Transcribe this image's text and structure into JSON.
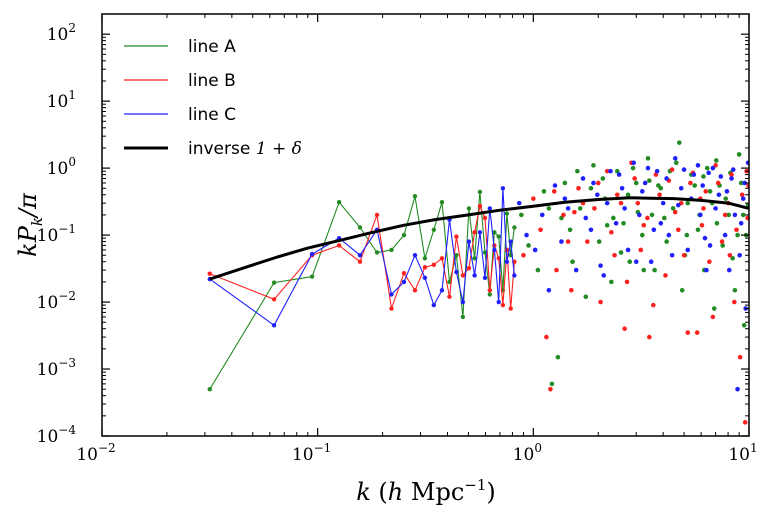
{
  "chart_data": {
    "type": "scatter",
    "xscale": "log",
    "yscale": "log",
    "xlim": [
      0.01,
      10
    ],
    "ylim": [
      0.0001,
      200
    ],
    "x_ticks": [
      0.01,
      0.1,
      1,
      10
    ],
    "x_tick_labels": [
      [
        "10",
        "−2"
      ],
      [
        "10",
        "−1"
      ],
      [
        "10",
        "0"
      ],
      [
        "10",
        "1"
      ]
    ],
    "y_ticks": [
      0.0001,
      0.001,
      0.01,
      0.1,
      1,
      10,
      100
    ],
    "y_tick_labels": [
      [
        "10",
        "−4"
      ],
      [
        "10",
        "−3"
      ],
      [
        "10",
        "−2"
      ],
      [
        "10",
        "−1"
      ],
      [
        "10",
        "0"
      ],
      [
        "10",
        "1"
      ],
      [
        "10",
        "2"
      ]
    ],
    "xlabel": {
      "k": "k",
      "open": " (",
      "h": "h",
      "unit": " Mpc",
      "sup": "−1",
      "close": ")"
    },
    "ylabel": {
      "main": "kP",
      "sub": "k",
      "tail": "/π"
    },
    "legend_placement": "top-left",
    "series": [
      {
        "name": "line A",
        "color": "#228B22",
        "connected_x": [
          0.0316,
          0.0628,
          0.0942,
          0.1257,
          0.1571,
          0.1885,
          0.2199,
          0.2513,
          0.2827,
          0.3142,
          0.3456,
          0.377,
          0.4084,
          0.4398,
          0.4712,
          0.5027,
          0.5341,
          0.5655,
          0.5969,
          0.6283,
          0.6597,
          0.6912,
          0.7226,
          0.754,
          0.7854,
          0.8168
        ],
        "connected_y": [
          0.0005,
          0.0195,
          0.024,
          0.31,
          0.13,
          0.055,
          0.06,
          0.1,
          0.38,
          0.045,
          0.12,
          0.31,
          0.02,
          0.05,
          0.006,
          0.25,
          0.045,
          0.44,
          0.055,
          0.013,
          0.11,
          0.095,
          0.015,
          0.21,
          0.05,
          0.13
        ],
        "scatter_points": [
          [
            0.88,
            0.2
          ],
          [
            0.95,
            0.07
          ],
          [
            1.05,
            0.03
          ],
          [
            1.12,
            0.45
          ],
          [
            1.22,
            0.0006
          ],
          [
            1.3,
            0.0015
          ],
          [
            1.4,
            0.6
          ],
          [
            1.52,
            0.04
          ],
          [
            1.65,
            0.25
          ],
          [
            1.75,
            0.012
          ],
          [
            1.9,
            1.1
          ],
          [
            2.02,
            0.08
          ],
          [
            2.15,
            0.35
          ],
          [
            2.3,
            0.02
          ],
          [
            2.45,
            0.9
          ],
          [
            2.62,
            0.15
          ],
          [
            2.8,
            0.04
          ],
          [
            3.0,
            0.6
          ],
          [
            3.2,
            0.1
          ],
          [
            3.4,
            1.4
          ],
          [
            3.65,
            0.03
          ],
          [
            3.9,
            0.5
          ],
          [
            4.15,
            0.08
          ],
          [
            4.45,
            0.25
          ],
          [
            4.75,
            2.4
          ],
          [
            5.05,
            0.05
          ],
          [
            5.4,
            0.8
          ],
          [
            5.8,
            0.12
          ],
          [
            6.2,
            0.03
          ],
          [
            6.6,
            0.45
          ],
          [
            7.05,
            1.3
          ],
          [
            7.55,
            0.07
          ],
          [
            8.05,
            0.2
          ],
          [
            8.6,
            0.015
          ],
          [
            9.2,
            0.6
          ],
          [
            9.7,
            0.1
          ],
          [
            1.18,
            0.25
          ],
          [
            1.48,
            0.12
          ],
          [
            1.85,
            0.5
          ],
          [
            2.35,
            0.18
          ],
          [
            2.9,
            1.0
          ],
          [
            3.55,
            0.2
          ],
          [
            4.3,
            0.9
          ],
          [
            5.2,
            0.3
          ],
          [
            6.4,
            1.0
          ],
          [
            7.8,
            0.35
          ],
          [
            9.0,
            1.6
          ],
          [
            2.55,
            0.055
          ],
          [
            3.25,
            0.03
          ],
          [
            4.9,
            0.015
          ],
          [
            6.9,
            0.008
          ],
          [
            8.4,
            0.045
          ],
          [
            9.5,
            0.0045
          ],
          [
            1.6,
            0.9
          ],
          [
            2.1,
            0.7
          ],
          [
            2.75,
            0.4
          ],
          [
            3.8,
            0.55
          ],
          [
            4.6,
            1.2
          ],
          [
            5.6,
            0.55
          ],
          [
            6.15,
            0.75
          ],
          [
            7.3,
            0.55
          ],
          [
            8.2,
            0.85
          ],
          [
            9.9,
            0.28
          ],
          [
            1.35,
            0.18
          ],
          [
            3.05,
            0.22
          ],
          [
            5.9,
            0.2
          ],
          [
            7.1,
            0.15
          ],
          [
            9.4,
            0.2
          ],
          [
            3.45,
            0.65
          ],
          [
            6.75,
            0.3
          ],
          [
            8.85,
            0.1
          ],
          [
            4.05,
            0.18
          ],
          [
            5.15,
            0.1
          ],
          [
            2.2,
            0.14
          ]
        ]
      },
      {
        "name": "line B",
        "color": "#FF2020",
        "connected_x": [
          0.0316,
          0.0628,
          0.0942,
          0.1257,
          0.1571,
          0.1885,
          0.2199,
          0.2513,
          0.2827,
          0.3142,
          0.3456,
          0.377,
          0.4084,
          0.4398,
          0.4712,
          0.5027,
          0.5341,
          0.5655,
          0.5969,
          0.6283,
          0.6597,
          0.6912,
          0.7226,
          0.754,
          0.7854,
          0.8168
        ],
        "connected_y": [
          0.0265,
          0.011,
          0.05,
          0.07,
          0.04,
          0.2,
          0.008,
          0.027,
          0.015,
          0.033,
          0.036,
          0.045,
          0.012,
          0.095,
          0.025,
          0.032,
          0.11,
          0.27,
          0.18,
          0.015,
          0.07,
          0.045,
          0.009,
          0.06,
          0.008,
          0.04
        ],
        "scatter_points": [
          [
            0.9,
            0.05
          ],
          [
            1.0,
            0.35
          ],
          [
            1.08,
            0.12
          ],
          [
            1.15,
            0.003
          ],
          [
            1.2,
            0.0005
          ],
          [
            1.28,
            0.03
          ],
          [
            1.38,
            0.2
          ],
          [
            1.5,
            0.015
          ],
          [
            1.62,
            0.5
          ],
          [
            1.78,
            0.08
          ],
          [
            1.92,
            0.25
          ],
          [
            2.05,
            0.01
          ],
          [
            2.2,
            0.9
          ],
          [
            2.38,
            0.05
          ],
          [
            2.55,
            0.3
          ],
          [
            2.72,
            0.02
          ],
          [
            2.95,
            0.7
          ],
          [
            3.15,
            0.06
          ],
          [
            3.38,
            0.18
          ],
          [
            3.6,
            0.009
          ],
          [
            3.85,
            0.4
          ],
          [
            4.1,
            0.025
          ],
          [
            4.4,
            0.95
          ],
          [
            4.7,
            0.12
          ],
          [
            5.0,
            0.05
          ],
          [
            5.35,
            0.6
          ],
          [
            5.75,
            0.0035
          ],
          [
            6.15,
            0.25
          ],
          [
            6.55,
            0.04
          ],
          [
            7.0,
            1.1
          ],
          [
            7.5,
            0.08
          ],
          [
            8.0,
            0.3
          ],
          [
            8.55,
            0.01
          ],
          [
            9.1,
            0.0015
          ],
          [
            9.6,
            0.00016
          ],
          [
            9.95,
            0.55
          ],
          [
            1.25,
            0.45
          ],
          [
            1.55,
            0.22
          ],
          [
            2.0,
            0.6
          ],
          [
            2.45,
            0.4
          ],
          [
            3.05,
            0.3
          ],
          [
            3.7,
            0.8
          ],
          [
            4.55,
            0.22
          ],
          [
            5.5,
            0.85
          ],
          [
            6.3,
            0.45
          ],
          [
            7.2,
            0.6
          ],
          [
            8.3,
            0.8
          ],
          [
            9.3,
            0.4
          ],
          [
            2.65,
            0.004
          ],
          [
            3.45,
            0.003
          ],
          [
            5.2,
            0.0035
          ],
          [
            6.8,
            0.006
          ],
          [
            1.7,
            0.3
          ],
          [
            2.85,
            1.2
          ],
          [
            4.25,
            0.65
          ],
          [
            5.95,
            0.35
          ],
          [
            7.75,
            0.2
          ],
          [
            9.75,
            0.9
          ],
          [
            3.25,
            0.14
          ],
          [
            4.85,
            0.3
          ],
          [
            8.75,
            0.12
          ],
          [
            1.45,
            0.08
          ],
          [
            2.3,
            0.11
          ],
          [
            6.05,
            0.14
          ],
          [
            8.15,
            0.05
          ],
          [
            9.85,
            0.18
          ]
        ]
      },
      {
        "name": "line C",
        "color": "#2020FF",
        "connected_x": [
          0.0316,
          0.0628,
          0.0942,
          0.1257,
          0.1571,
          0.1885,
          0.2199,
          0.2513,
          0.2827,
          0.3142,
          0.3456,
          0.377,
          0.4084,
          0.4398,
          0.4712,
          0.5027,
          0.5341,
          0.5655,
          0.5969,
          0.6283,
          0.6597,
          0.6912,
          0.7226,
          0.754,
          0.7854,
          0.8168
        ],
        "connected_y": [
          0.022,
          0.0045,
          0.052,
          0.09,
          0.05,
          0.12,
          0.013,
          0.02,
          0.05,
          0.023,
          0.009,
          0.015,
          0.17,
          0.028,
          0.01,
          0.08,
          0.025,
          0.11,
          0.023,
          0.25,
          0.06,
          0.01,
          0.5,
          0.04,
          0.08,
          0.025
        ],
        "scatter_points": [
          [
            0.86,
            0.3
          ],
          [
            0.93,
            0.1
          ],
          [
            1.02,
            0.06
          ],
          [
            1.1,
            0.2
          ],
          [
            1.18,
            0.015
          ],
          [
            1.26,
            0.55
          ],
          [
            1.35,
            0.08
          ],
          [
            1.45,
            0.25
          ],
          [
            1.58,
            0.03
          ],
          [
            1.7,
            0.7
          ],
          [
            1.85,
            0.12
          ],
          [
            1.98,
            0.4
          ],
          [
            2.12,
            0.025
          ],
          [
            2.28,
            0.9
          ],
          [
            2.42,
            0.15
          ],
          [
            2.58,
            0.5
          ],
          [
            2.75,
            0.06
          ],
          [
            2.92,
            1.2
          ],
          [
            3.1,
            0.2
          ],
          [
            3.3,
            0.6
          ],
          [
            3.52,
            0.04
          ],
          [
            3.75,
            0.9
          ],
          [
            4.0,
            0.3
          ],
          [
            4.25,
            0.1
          ],
          [
            4.55,
            1.4
          ],
          [
            4.85,
            0.5
          ],
          [
            5.2,
            0.06
          ],
          [
            5.55,
            0.8
          ],
          [
            5.95,
            0.2
          ],
          [
            6.35,
            0.03
          ],
          [
            6.8,
            1.0
          ],
          [
            7.25,
            0.4
          ],
          [
            7.75,
            0.1
          ],
          [
            8.3,
            0.7
          ],
          [
            8.85,
            0.0005
          ],
          [
            9.4,
            0.35
          ],
          [
            9.9,
            1.2
          ],
          [
            1.4,
            0.35
          ],
          [
            1.75,
            0.18
          ],
          [
            2.2,
            0.3
          ],
          [
            2.65,
            0.25
          ],
          [
            3.2,
            0.45
          ],
          [
            3.9,
            0.15
          ],
          [
            4.7,
            0.28
          ],
          [
            5.4,
            0.35
          ],
          [
            6.1,
            0.55
          ],
          [
            7.0,
            0.25
          ],
          [
            7.9,
            0.45
          ],
          [
            8.6,
            0.2
          ],
          [
            9.2,
            0.15
          ],
          [
            2.05,
            0.035
          ],
          [
            3.0,
            0.04
          ],
          [
            4.4,
            0.05
          ],
          [
            6.6,
            0.07
          ],
          [
            8.1,
            0.03
          ],
          [
            9.65,
            0.008
          ],
          [
            1.9,
            0.6
          ],
          [
            2.5,
            0.8
          ],
          [
            3.4,
            1.0
          ],
          [
            4.15,
            0.7
          ],
          [
            5.0,
            0.95
          ],
          [
            5.8,
            1.1
          ],
          [
            6.5,
            0.85
          ],
          [
            7.4,
            0.75
          ],
          [
            8.45,
            0.95
          ],
          [
            9.55,
            0.6
          ],
          [
            3.62,
            0.12
          ],
          [
            6.25,
            0.09
          ],
          [
            9.05,
            0.05
          ]
        ]
      },
      {
        "name_text": "inverse ",
        "name_math": "1 + δ",
        "color": "#000000",
        "x": [
          0.0316,
          0.045,
          0.065,
          0.09,
          0.13,
          0.18,
          0.25,
          0.35,
          0.5,
          0.7,
          1.0,
          1.4,
          2.0,
          2.8,
          3.5,
          4.5,
          6.0,
          8.0,
          10.0
        ],
        "y": [
          0.022,
          0.032,
          0.047,
          0.064,
          0.085,
          0.11,
          0.14,
          0.17,
          0.2,
          0.235,
          0.27,
          0.31,
          0.34,
          0.36,
          0.355,
          0.35,
          0.33,
          0.3,
          0.25
        ]
      }
    ]
  }
}
